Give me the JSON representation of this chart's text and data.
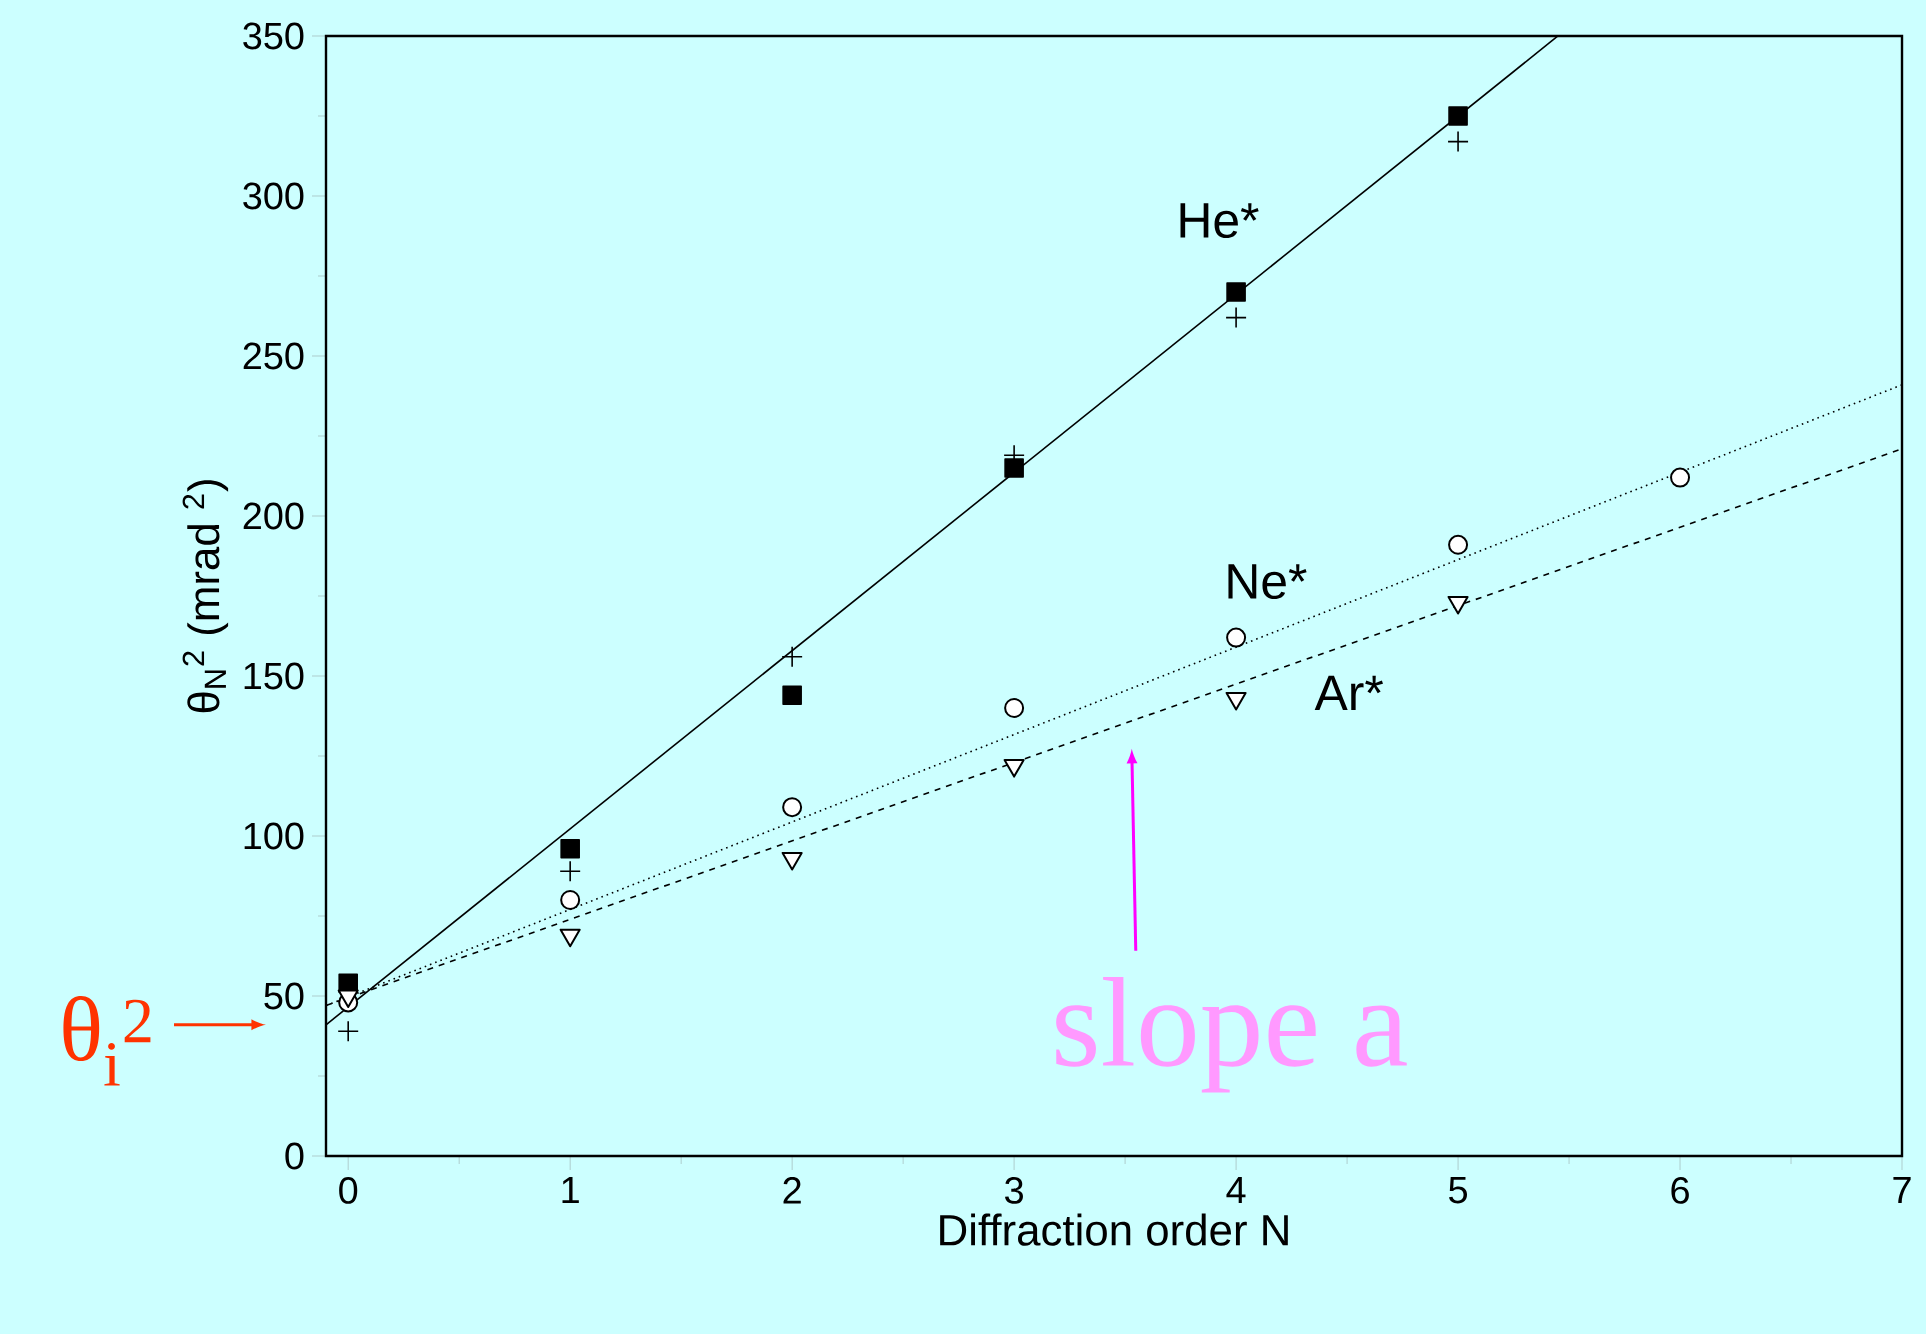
{
  "chart_data": {
    "type": "scatter",
    "xlabel": "Diffraction order  N",
    "ylabel": "θ$_{N}$$^{2}$  (mrad $^{2}$)",
    "xlim": [
      -0.1,
      7
    ],
    "ylim": [
      0,
      350
    ],
    "xticks": [
      0,
      1,
      2,
      3,
      4,
      5,
      6,
      7
    ],
    "yticks": [
      0,
      50,
      100,
      150,
      200,
      250,
      300,
      350
    ],
    "series": [
      {
        "marker": "square",
        "color": "#000000",
        "x": [
          0,
          1,
          2,
          3,
          4,
          5
        ],
        "values": [
          54,
          96,
          144,
          215,
          270,
          325
        ]
      },
      {
        "marker": "cross",
        "color": "#000000",
        "x": [
          0,
          1,
          2,
          3,
          4,
          5
        ],
        "values": [
          39,
          89,
          156,
          219,
          262,
          317
        ]
      },
      {
        "marker": "circle",
        "color": "#000000",
        "x": [
          0,
          1,
          2,
          3,
          4,
          5,
          6
        ],
        "values": [
          48,
          80,
          109,
          140,
          162,
          191,
          212
        ]
      },
      {
        "marker": "triangle",
        "color": "#000000",
        "x": [
          0,
          1,
          2,
          3,
          4,
          5
        ],
        "values": [
          50,
          69,
          93,
          122,
          143,
          173
        ]
      },
      {
        "name": "He*",
        "type": "line",
        "marker": "none",
        "line_style": "solid",
        "color": "#000000",
        "x": [
          -0.1,
          5.45
        ],
        "values": [
          41,
          350
        ]
      },
      {
        "name": "Ne*",
        "type": "line",
        "marker": "none",
        "line_style": "dotted",
        "color": "#000000",
        "x": [
          -0.1,
          7
        ],
        "values": [
          47,
          241
        ]
      },
      {
        "name": "Ar*",
        "type": "line",
        "marker": "none",
        "line_style": "dashed",
        "color": "#000000",
        "x": [
          -0.1,
          7
        ],
        "values": [
          47,
          221
        ]
      }
    ],
    "annotations": [
      {
        "text": "slope a",
        "x": 3.53,
        "y": 136
      },
      {
        "text": "θ$_{i}$$^{2}$",
        "x": -0.1,
        "y": 41
      }
    ]
  }
}
